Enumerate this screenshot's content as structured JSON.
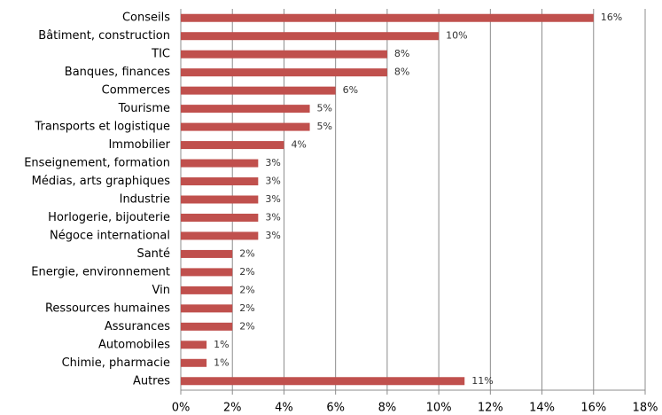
{
  "chart_data": {
    "type": "bar",
    "orientation": "horizontal",
    "categories": [
      "Conseils",
      "Bâtiment, construction",
      "TIC",
      "Banques, finances",
      "Commerces",
      "Tourisme",
      "Transports et logistique",
      "Immobilier",
      "Enseignement, formation",
      "Médias, arts graphiques",
      "Industrie",
      "Horlogerie, bijouterie",
      "Négoce international",
      "Santé",
      "Energie, environnement",
      "Vin",
      "Ressources humaines",
      "Assurances",
      "Automobiles",
      "Chimie, pharmacie",
      "Autres"
    ],
    "values": [
      16,
      10,
      8,
      8,
      6,
      5,
      5,
      4,
      3,
      3,
      3,
      3,
      3,
      2,
      2,
      2,
      2,
      2,
      1,
      1,
      11
    ],
    "value_labels": [
      "16%",
      "10%",
      "8%",
      "8%",
      "6%",
      "5%",
      "5%",
      "4%",
      "3%",
      "3%",
      "3%",
      "3%",
      "3%",
      "2%",
      "2%",
      "2%",
      "2%",
      "2%",
      "1%",
      "1%",
      "11%"
    ],
    "color": "#c0504d",
    "xlim": [
      0,
      18
    ],
    "xticks": [
      {
        "value": 0,
        "label": "0%"
      },
      {
        "value": 2,
        "label": "2%"
      },
      {
        "value": 4,
        "label": "4%"
      },
      {
        "value": 6,
        "label": "6%"
      },
      {
        "value": 8,
        "label": "8%"
      },
      {
        "value": 10,
        "label": "10%"
      },
      {
        "value": 12,
        "label": "12%"
      },
      {
        "value": 14,
        "label": "14%"
      },
      {
        "value": 16,
        "label": "16%"
      },
      {
        "value": 18,
        "label": "18%"
      }
    ],
    "grid": true
  }
}
